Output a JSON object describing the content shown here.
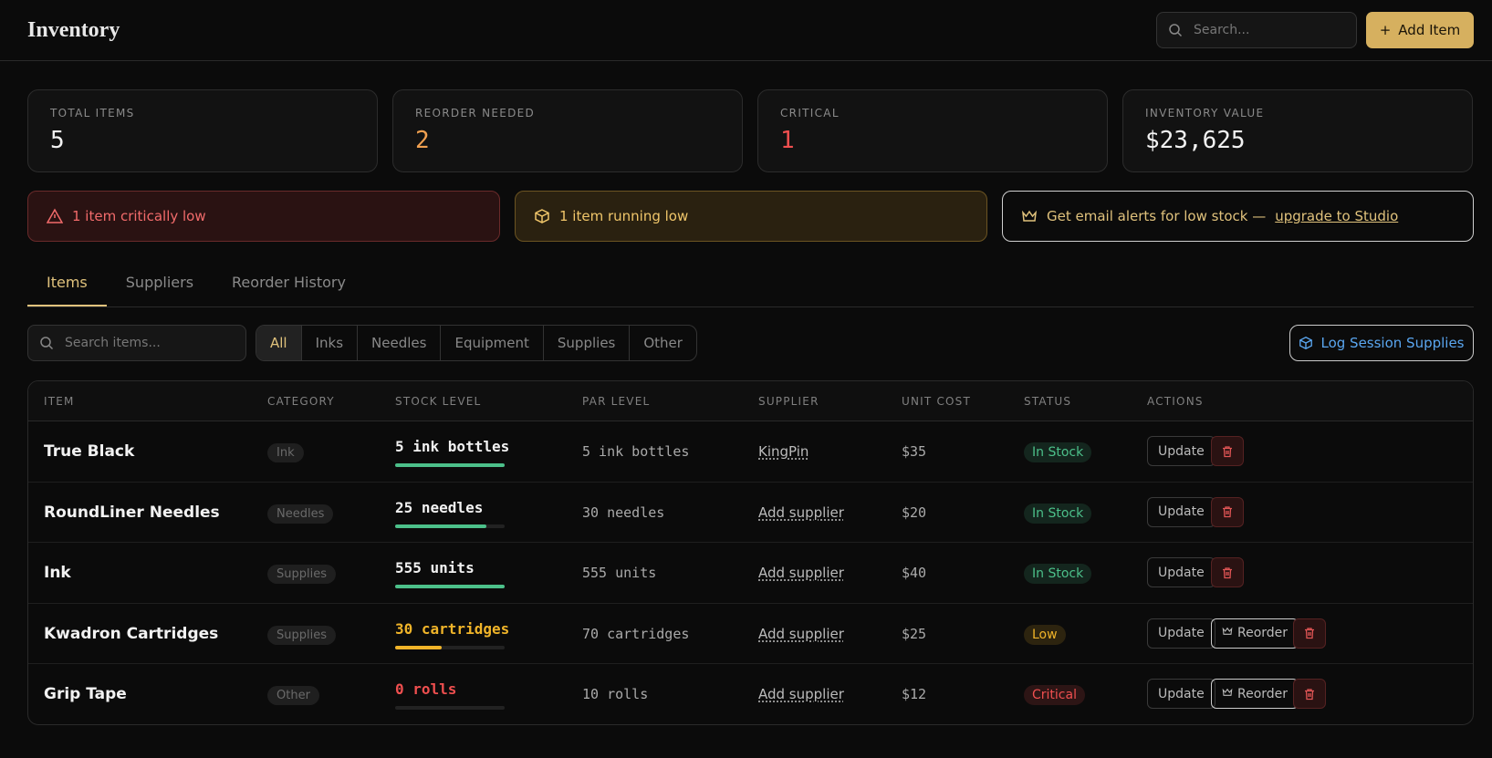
{
  "header": {
    "title": "Inventory",
    "search_placeholder": "Search...",
    "add_button": "Add Item"
  },
  "stats": [
    {
      "label": "TOTAL ITEMS",
      "value": "5",
      "color": "#f2f2f2"
    },
    {
      "label": "REORDER NEEDED",
      "value": "2",
      "color": "#f0a050"
    },
    {
      "label": "CRITICAL",
      "value": "1",
      "color": "#ef4f4f"
    },
    {
      "label": "INVENTORY VALUE",
      "value": "$23,625",
      "color": "#f2f2f2"
    }
  ],
  "alerts": {
    "critical": "1 item critically low",
    "low": "1 item running low",
    "upgrade_text": "Get email alerts for low stock —",
    "upgrade_link": "upgrade to Studio"
  },
  "tabs": [
    "Items",
    "Suppliers",
    "Reorder History"
  ],
  "filters": {
    "search_placeholder": "Search items...",
    "categories": [
      "All",
      "Inks",
      "Needles",
      "Equipment",
      "Supplies",
      "Other"
    ],
    "action": "Log Session Supplies"
  },
  "table": {
    "columns": [
      "ITEM",
      "CATEGORY",
      "STOCK LEVEL",
      "PAR LEVEL",
      "SUPPLIER",
      "UNIT COST",
      "STATUS",
      "ACTIONS"
    ],
    "rows": [
      {
        "item": "True Black",
        "category": "Ink",
        "stock": "5 ink bottles",
        "par": "5 ink bottles",
        "supplier": "KingPin",
        "cost": "$35",
        "status": "In Stock",
        "color": "#4cc08a",
        "actions": [
          "Update"
        ]
      },
      {
        "item": "RoundLiner Needles",
        "category": "Needles",
        "stock": "25 needles",
        "par": "30 needles",
        "supplier": "Add supplier",
        "cost": "$20",
        "status": "In Stock",
        "color": "#4cc08a",
        "actions": [
          "Update"
        ]
      },
      {
        "item": "Ink",
        "category": "Supplies",
        "stock": "555 units",
        "par": "555 units",
        "supplier": "Add supplier",
        "cost": "$40",
        "status": "In Stock",
        "color": "#4cc08a",
        "actions": [
          "Update"
        ]
      },
      {
        "item": "Kwadron Cartridges",
        "category": "Supplies",
        "stock": "30 cartridges",
        "par": "70 cartridges",
        "supplier": "Add supplier",
        "cost": "$25",
        "status": "Low",
        "color": "#f0b429",
        "actions": [
          "Update",
          "Reorder"
        ]
      },
      {
        "item": "Grip Tape",
        "category": "Other",
        "stock": "0 rolls",
        "par": "10 rolls",
        "supplier": "Add supplier",
        "cost": "$12",
        "status": "Critical",
        "color": "#ef4f4f",
        "actions": [
          "Update",
          "Reorder"
        ]
      }
    ]
  }
}
